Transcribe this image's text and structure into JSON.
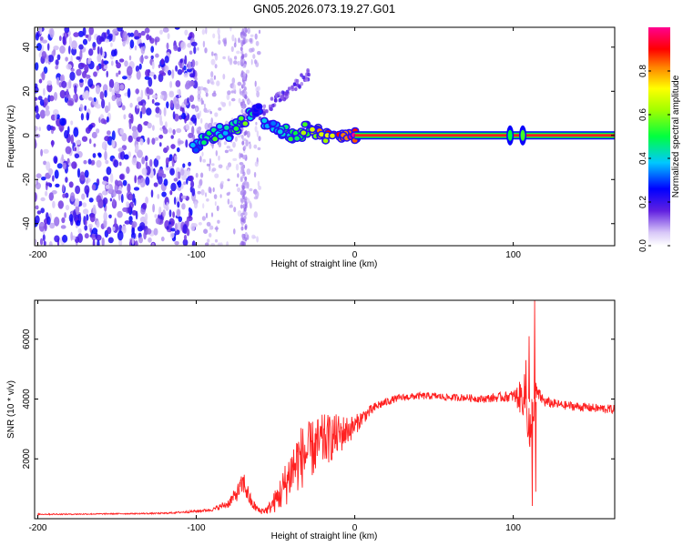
{
  "title": "GN05.2026.073.19.27.G01",
  "colors": {
    "snr_line": "#ff2020",
    "background": "#ffffff",
    "axis": "#000000",
    "track": "#ff2020",
    "track_halo": "#00ff40"
  },
  "chart_data": [
    {
      "type": "heatmap",
      "title": "GN05.2026.073.19.27.G01",
      "xlabel": "Height of straight line (km)",
      "ylabel": "Frequency (Hz)",
      "xlim": [
        -202,
        164
      ],
      "ylim": [
        -50,
        49
      ],
      "xticks": [
        -200,
        -100,
        0,
        100
      ],
      "xtick_labels": [
        "-200",
        "-100",
        "0",
        "100"
      ],
      "yticks": [
        -40,
        -20,
        0,
        20,
        40
      ],
      "ytick_labels": [
        "-40",
        "-20",
        "0",
        "20",
        "40"
      ],
      "colorbar": {
        "label": "Normalized spectral amplitude",
        "range": [
          0,
          1
        ],
        "ticks": [
          0.0,
          0.2,
          0.4,
          0.6,
          0.8
        ],
        "tick_labels": [
          "0.0",
          "0.2",
          "0.4",
          "0.6",
          "0.8"
        ]
      },
      "noise_region_km": [
        -202,
        -100
      ],
      "tail_region_km": [
        -100,
        -60
      ],
      "streak_km": -70,
      "features": [
        {
          "x": -100,
          "y": -5,
          "amp": 0.35
        },
        {
          "x": -95,
          "y": -2,
          "amp": 0.45
        },
        {
          "x": -90,
          "y": 0,
          "amp": 0.5
        },
        {
          "x": -85,
          "y": 2,
          "amp": 0.45
        },
        {
          "x": -80,
          "y": 1,
          "amp": 0.4
        },
        {
          "x": -75,
          "y": 4,
          "amp": 0.5
        },
        {
          "x": -70,
          "y": 6,
          "amp": 0.55
        },
        {
          "x": -65,
          "y": 9,
          "amp": 0.45
        },
        {
          "x": -60,
          "y": 12,
          "amp": 0.3
        },
        {
          "x": -55,
          "y": 6,
          "amp": 0.4
        },
        {
          "x": -50,
          "y": 3,
          "amp": 0.4
        },
        {
          "x": -45,
          "y": 2,
          "amp": 0.45
        },
        {
          "x": -40,
          "y": 0,
          "amp": 0.5
        },
        {
          "x": -35,
          "y": 1,
          "amp": 0.55
        },
        {
          "x": -30,
          "y": 3,
          "amp": 0.6
        },
        {
          "x": -25,
          "y": 2,
          "amp": 0.7
        },
        {
          "x": -20,
          "y": 0,
          "amp": 0.75
        },
        {
          "x": -15,
          "y": -1,
          "amp": 0.85
        },
        {
          "x": -10,
          "y": -1,
          "amp": 0.9
        },
        {
          "x": -5,
          "y": 0,
          "amp": 0.95
        },
        {
          "x": 0,
          "y": 0,
          "amp": 0.97
        }
      ],
      "carrier": {
        "x_start": 0,
        "x_end": 164,
        "freq": 0,
        "amp": 0.95
      },
      "blips": [
        {
          "x": 98,
          "amp": 0.5
        },
        {
          "x": 106,
          "amp": 0.55
        }
      ]
    },
    {
      "type": "line",
      "xlabel": "Height of straight line (km)",
      "ylabel": "SNR (10 * v/v)",
      "xlim": [
        -202,
        164
      ],
      "ylim": [
        0,
        7300
      ],
      "xticks": [
        -200,
        -100,
        0,
        100
      ],
      "xtick_labels": [
        "-200",
        "-100",
        "0",
        "100"
      ],
      "yticks": [
        2000,
        4000,
        6000
      ],
      "ytick_labels": [
        "2000",
        "4000",
        "6000"
      ],
      "x": [
        -200,
        -180,
        -160,
        -140,
        -120,
        -100,
        -90,
        -80,
        -75,
        -70,
        -68,
        -65,
        -60,
        -55,
        -50,
        -45,
        -40,
        -35,
        -30,
        -25,
        -20,
        -15,
        -10,
        -5,
        0,
        5,
        10,
        15,
        20,
        25,
        30,
        40,
        50,
        60,
        70,
        80,
        90,
        100,
        105,
        108,
        110,
        112,
        113,
        115,
        120,
        130,
        140,
        150,
        164
      ],
      "values": [
        150,
        150,
        160,
        170,
        180,
        250,
        300,
        500,
        800,
        1200,
        900,
        500,
        250,
        300,
        600,
        1000,
        1600,
        2000,
        2200,
        2400,
        2600,
        2700,
        2800,
        2950,
        3100,
        3400,
        3600,
        3800,
        3900,
        4000,
        4050,
        4100,
        4100,
        4050,
        4050,
        4000,
        4050,
        4100,
        4050,
        4150,
        3000,
        1800,
        4000,
        4200,
        3900,
        3800,
        3750,
        3700,
        3650
      ],
      "noise_amplitude": [
        20,
        20,
        20,
        20,
        25,
        40,
        50,
        150,
        250,
        400,
        350,
        200,
        100,
        150,
        400,
        700,
        900,
        1100,
        1000,
        950,
        900,
        800,
        700,
        500,
        350,
        250,
        200,
        160,
        140,
        120,
        120,
        120,
        120,
        120,
        120,
        130,
        150,
        200,
        600,
        800,
        1200,
        1500,
        900,
        250,
        180,
        150,
        150,
        150,
        150
      ]
    }
  ]
}
